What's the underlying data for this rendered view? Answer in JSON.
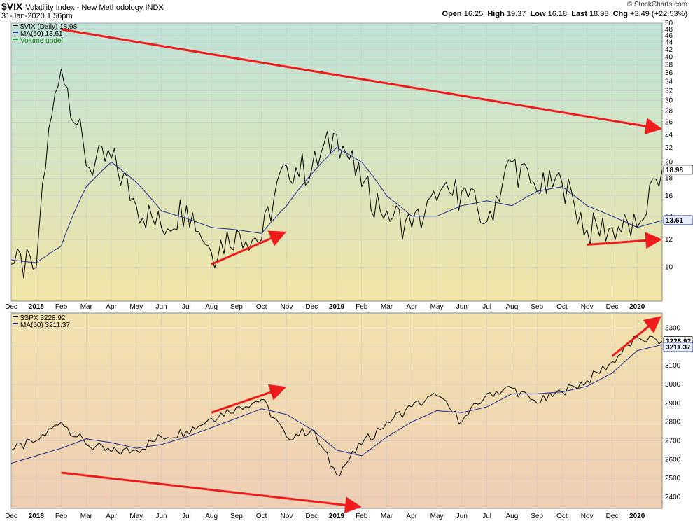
{
  "header": {
    "symbol": "$VIX",
    "description": "Volatility Index - New Methodology INDX",
    "datetime": "31-Jan-2020 1:56pm",
    "open_label": "Open",
    "open": "16.25",
    "high_label": "High",
    "high": "19.37",
    "low_label": "Low",
    "low": "16.18",
    "last_label": "Last",
    "last": "18.98",
    "chg_label": "Chg",
    "chg": "+3.49 (+22.53%)",
    "credit": "© StockCharts.com"
  },
  "colors": {
    "vix_bg_top": "#bfe3d9",
    "vix_bg_bottom": "#f0e5a6",
    "spx_bg_top": "#f1e3ad",
    "spx_bg_bottom": "#efcfb4",
    "price_line": "#000000",
    "ma_line": "#1f2a8c",
    "trend_arrow": "#ee1c1c",
    "grid": "#c9c9c9",
    "volume_label": "#1a8a1a"
  },
  "x_axis": {
    "labels": [
      "Dec",
      "2018",
      "Feb",
      "Mar",
      "Apr",
      "May",
      "Jun",
      "Jul",
      "Aug",
      "Sep",
      "Oct",
      "Nov",
      "Dec",
      "2019",
      "Feb",
      "Mar",
      "Apr",
      "May",
      "Jun",
      "Jul",
      "Aug",
      "Sep",
      "Oct",
      "Nov",
      "Dec",
      "2020"
    ],
    "bold_labels": [
      "2018",
      "2019",
      "2020"
    ]
  },
  "chart_data": [
    {
      "type": "line",
      "title": "$VIX (Daily) 18.98",
      "legend": [
        "$VIX (Daily) 18.98",
        "MA(50) 13.61",
        "Volume undef"
      ],
      "scale": "log",
      "ylim": [
        8,
        50
      ],
      "y_ticks": [
        10,
        12,
        14,
        16,
        18,
        20,
        22,
        24,
        26,
        28,
        30,
        32,
        34,
        36,
        38,
        40,
        42,
        44,
        46,
        48,
        50
      ],
      "last_value_label": "18.98",
      "ma_value_label": "13.61",
      "x": [
        "Dec",
        "2018",
        "Feb",
        "Mar",
        "Apr",
        "May",
        "Jun",
        "Jul",
        "Aug",
        "Sep",
        "Oct",
        "Nov",
        "Dec",
        "2019",
        "Feb",
        "Mar",
        "Apr",
        "May",
        "Jun",
        "Jul",
        "Aug",
        "Sep",
        "Oct",
        "Nov",
        "Dec",
        "2020",
        "Jan-31"
      ],
      "series": [
        {
          "name": "$VIX (Daily)",
          "values": [
            10.2,
            10.0,
            37.0,
            19.5,
            20.5,
            15.0,
            13.0,
            15.0,
            11.0,
            12.8,
            12.0,
            19.5,
            19.0,
            24.0,
            17.0,
            14.5,
            13.0,
            15.5,
            16.5,
            13.5,
            20.0,
            16.5,
            17.5,
            12.8,
            13.0,
            13.0,
            18.98
          ]
        },
        {
          "name": "MA(50)",
          "values": [
            10.5,
            10.3,
            11.5,
            17.0,
            20.0,
            17.5,
            14.5,
            13.8,
            13.0,
            12.8,
            12.5,
            15.0,
            18.5,
            22.0,
            20.0,
            16.0,
            14.0,
            14.0,
            15.0,
            15.5,
            15.0,
            16.5,
            17.0,
            15.0,
            14.0,
            13.0,
            13.61
          ]
        }
      ],
      "annotations": [
        {
          "type": "arrow",
          "from": [
            "Feb 2018",
            48
          ],
          "to": [
            "Jan 2020",
            25
          ]
        },
        {
          "type": "arrow",
          "from": [
            "Aug 2018",
            10.2
          ],
          "to": [
            "Oct 2018",
            12.5
          ]
        },
        {
          "type": "arrow",
          "from": [
            "Nov 2019",
            11.6
          ],
          "to": [
            "Jan 2020",
            12.0
          ]
        }
      ]
    },
    {
      "type": "line",
      "title": "$SPX 3228.92",
      "legend": [
        "$SPX 3228.92",
        "MA(50) 3211.37"
      ],
      "ylim": [
        2340,
        3380
      ],
      "y_ticks": [
        2400,
        2500,
        2600,
        2700,
        2800,
        2900,
        3000,
        3100,
        3200,
        3300
      ],
      "last_value_label": "3228.92",
      "ma_value_label": "3211.37",
      "x": [
        "Dec",
        "2018",
        "Feb",
        "Mar",
        "Apr",
        "May",
        "Jun",
        "Jul",
        "Aug",
        "Sep",
        "Oct",
        "Nov",
        "Dec",
        "2019",
        "Feb",
        "Mar",
        "Apr",
        "May",
        "Jun",
        "Jul",
        "Aug",
        "Sep",
        "Oct",
        "Nov",
        "Dec",
        "2020",
        "Jan-31"
      ],
      "series": [
        {
          "name": "$SPX",
          "values": [
            2650,
            2700,
            2800,
            2680,
            2640,
            2650,
            2720,
            2750,
            2820,
            2880,
            2920,
            2720,
            2760,
            2520,
            2680,
            2800,
            2880,
            2940,
            2800,
            2950,
            2980,
            2900,
            2960,
            3020,
            3120,
            3250,
            3228.92
          ]
        },
        {
          "name": "MA(50)",
          "values": [
            2580,
            2620,
            2660,
            2710,
            2690,
            2660,
            2680,
            2720,
            2770,
            2820,
            2870,
            2840,
            2760,
            2650,
            2620,
            2720,
            2800,
            2860,
            2850,
            2880,
            2950,
            2950,
            2960,
            2990,
            3060,
            3180,
            3211.37
          ]
        }
      ],
      "annotations": [
        {
          "type": "arrow",
          "from": [
            "Feb 2018",
            2530
          ],
          "to": [
            "Jan 2019",
            2350
          ]
        },
        {
          "type": "arrow",
          "from": [
            "Aug 2018",
            2850
          ],
          "to": [
            "Oct 2018",
            2980
          ]
        },
        {
          "type": "arrow",
          "from": [
            "Dec 2019",
            3150
          ],
          "to": [
            "Jan 2020",
            3350
          ]
        }
      ]
    }
  ]
}
